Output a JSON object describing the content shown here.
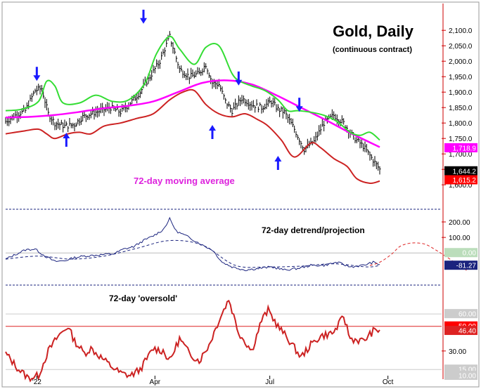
{
  "chart_data": [
    {
      "type": "line",
      "panel": "price",
      "title": "Gold, Daily",
      "subtitle": "(continuous contract)",
      "annotation": "72-day moving average",
      "y_ticks": [
        "2,100.0",
        "2,050.0",
        "2,000.0",
        "1,950.0",
        "1,900.0",
        "1,850.0",
        "1,800.0",
        "1,750.0",
        "1,700.0",
        "1,650.0",
        "1,600.0"
      ],
      "ylim": [
        1580,
        2130
      ],
      "x_labels": [
        "'22",
        "Apr",
        "Jul",
        "Oct"
      ],
      "tags": [
        {
          "text": "1,718.9",
          "value": 1718.9,
          "color": "#ff00ff"
        },
        {
          "text": "1,644.2",
          "value": 1644.2,
          "color": "#000000"
        },
        {
          "text": "1,615.2",
          "value": 1615.2,
          "color": "#ff0000"
        }
      ],
      "series": [
        {
          "name": "",
          "color": "#000000",
          "x": [
            0,
            6,
            12,
            18,
            22,
            26,
            30,
            36,
            42,
            47,
            52,
            58,
            64,
            70,
            76,
            82,
            88,
            94,
            100,
            106,
            112,
            118,
            122,
            126,
            130,
            134,
            138,
            144,
            150,
            156,
            162,
            166,
            170,
            176,
            182,
            188,
            194,
            200,
            206,
            212,
            218,
            224,
            228
          ],
          "values": [
            1805,
            1825,
            1840,
            1905,
            1912,
            1830,
            1800,
            1790,
            1795,
            1820,
            1830,
            1840,
            1850,
            1835,
            1865,
            1900,
            1950,
            2000,
            2080,
            1975,
            1950,
            1960,
            1990,
            1930,
            1925,
            1870,
            1840,
            1880,
            1860,
            1850,
            1870,
            1845,
            1835,
            1780,
            1715,
            1740,
            1800,
            1825,
            1800,
            1755,
            1725,
            1680,
            1650
          ]
        },
        {
          "name": "",
          "color": "#ff00ff",
          "x": [
            0,
            15,
            30,
            45,
            60,
            75,
            90,
            105,
            120,
            135,
            150,
            165,
            180,
            195,
            210,
            228
          ],
          "values": [
            1818,
            1820,
            1826,
            1836,
            1848,
            1856,
            1870,
            1900,
            1930,
            1938,
            1925,
            1890,
            1850,
            1810,
            1768,
            1722
          ]
        },
        {
          "name": "",
          "color": "#33dd33",
          "x": [
            0,
            10,
            20,
            25,
            30,
            35,
            45,
            55,
            65,
            75,
            85,
            92,
            100,
            106,
            115,
            122,
            130,
            138,
            143,
            150,
            158,
            166,
            172,
            178,
            186,
            194,
            202,
            210,
            216,
            222,
            228
          ],
          "values": [
            1840,
            1845,
            1870,
            1935,
            1920,
            1865,
            1865,
            1890,
            1870,
            1875,
            1930,
            2025,
            2080,
            2040,
            1990,
            2045,
            2050,
            1960,
            1935,
            1920,
            1905,
            1875,
            1840,
            1840,
            1835,
            1825,
            1805,
            1770,
            1760,
            1770,
            1745
          ]
        },
        {
          "name": "",
          "color": "#cc2222",
          "x": [
            0,
            12,
            20,
            25,
            30,
            38,
            45,
            52,
            60,
            70,
            80,
            90,
            100,
            108,
            115,
            122,
            130,
            138,
            146,
            154,
            160,
            168,
            176,
            186,
            192,
            200,
            208,
            214,
            222,
            228
          ],
          "values": [
            1765,
            1775,
            1780,
            1765,
            1750,
            1765,
            1770,
            1765,
            1790,
            1800,
            1815,
            1830,
            1875,
            1900,
            1905,
            1860,
            1830,
            1820,
            1830,
            1810,
            1790,
            1745,
            1690,
            1735,
            1720,
            1685,
            1660,
            1620,
            1605,
            1612
          ]
        }
      ]
    },
    {
      "type": "line",
      "panel": "detrend",
      "title": "72-day detrend/projection",
      "y_ticks": [
        "200.00",
        "100.00"
      ],
      "ylim": [
        -180,
        250
      ],
      "tags": [
        {
          "text": "0.00",
          "value": 0,
          "color": "#bbddbb"
        },
        {
          "text": "-81.27",
          "value": -81.27,
          "color": "#1a237e"
        }
      ],
      "series": [
        {
          "name": "",
          "color": "#1a237e",
          "x": [
            0,
            6,
            12,
            18,
            24,
            30,
            36,
            42,
            48,
            54,
            60,
            66,
            72,
            78,
            84,
            90,
            96,
            100,
            104,
            110,
            116,
            120,
            126,
            132,
            138,
            146,
            154,
            162,
            170,
            178,
            186,
            194,
            202,
            210,
            218,
            224,
            228
          ],
          "values": [
            -40,
            -10,
            20,
            25,
            -20,
            -55,
            -50,
            -30,
            -20,
            -15,
            -10,
            -5,
            25,
            40,
            80,
            110,
            150,
            220,
            140,
            110,
            75,
            50,
            20,
            -60,
            -90,
            -110,
            -100,
            -90,
            -110,
            -100,
            -80,
            -80,
            -60,
            -90,
            -80,
            -60,
            -75
          ]
        },
        {
          "name": "",
          "color": "#1a237e",
          "x": [
            0,
            20,
            40,
            60,
            80,
            100,
            120,
            140,
            160,
            180,
            200,
            220,
            228
          ],
          "values": [
            -40,
            -20,
            -40,
            -20,
            30,
            80,
            50,
            -80,
            -90,
            -85,
            -70,
            -90,
            -80
          ]
        },
        {
          "name": "",
          "color": "#dd2222",
          "x": [
            222,
            228,
            235,
            240,
            245,
            250,
            256,
            262,
            268,
            275,
            282
          ],
          "values": [
            -81,
            -60,
            -10,
            40,
            60,
            65,
            55,
            20,
            -20,
            -70,
            -120
          ]
        }
      ]
    },
    {
      "type": "line",
      "panel": "oversold",
      "title": "72-day 'oversold'",
      "y_ticks": [
        "30.00"
      ],
      "ylim": [
        10,
        80
      ],
      "tags": [
        {
          "text": "60.00",
          "value": 60,
          "color": "#cccccc"
        },
        {
          "text": "50.00",
          "value": 50,
          "color": "#ff0000"
        },
        {
          "text": "46.40",
          "value": 46.4,
          "color": "#dd2222"
        },
        {
          "text": "15.00",
          "value": 15,
          "color": "#cccccc"
        },
        {
          "text": "10.00",
          "value": 10,
          "color": "#cccccc"
        }
      ],
      "series": [
        {
          "name": "",
          "color": "#cc2222",
          "x": [
            0,
            8,
            14,
            20,
            26,
            32,
            38,
            42,
            48,
            52,
            58,
            64,
            70,
            76,
            82,
            90,
            96,
            100,
            106,
            112,
            118,
            124,
            130,
            136,
            142,
            150,
            156,
            160,
            166,
            172,
            180,
            186,
            192,
            200,
            206,
            210,
            218,
            224,
            228
          ],
          "values": [
            28,
            15,
            8,
            10,
            30,
            42,
            50,
            38,
            28,
            32,
            25,
            18,
            12,
            10,
            15,
            32,
            30,
            22,
            40,
            28,
            22,
            35,
            55,
            72,
            45,
            30,
            55,
            63,
            50,
            40,
            25,
            35,
            42,
            45,
            58,
            40,
            38,
            46,
            47
          ]
        }
      ]
    }
  ]
}
